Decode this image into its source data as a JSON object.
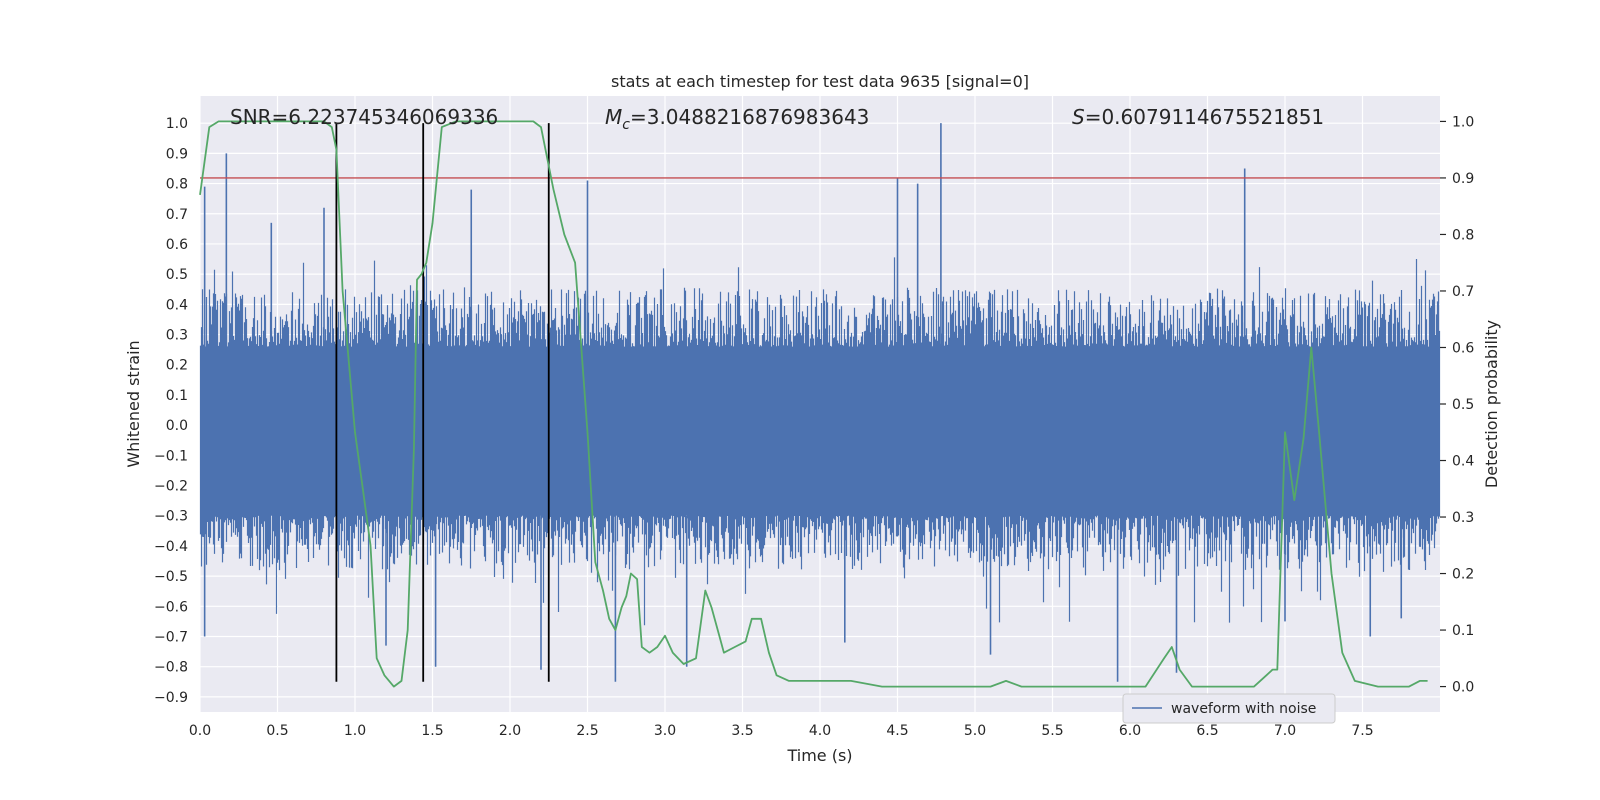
{
  "chart_data": {
    "type": "line",
    "title": "stats at each timestep for test data 9635 [signal=0]",
    "xlabel": "Time (s)",
    "ylabel": "Whitened strain",
    "y2label": "Detection probability",
    "xlim": [
      0.0,
      8.0
    ],
    "ylim": [
      -0.95,
      1.09
    ],
    "y2lim": [
      -0.045,
      1.045
    ],
    "xticks": [
      "0.0",
      "0.5",
      "1.0",
      "1.5",
      "2.0",
      "2.5",
      "3.0",
      "3.5",
      "4.0",
      "4.5",
      "5.0",
      "5.5",
      "6.0",
      "6.5",
      "7.0",
      "7.5"
    ],
    "yticks": [
      "−0.9",
      "−0.8",
      "−0.7",
      "−0.6",
      "−0.5",
      "−0.4",
      "−0.3",
      "−0.2",
      "−0.1",
      "0.0",
      "0.1",
      "0.2",
      "0.3",
      "0.4",
      "0.5",
      "0.6",
      "0.7",
      "0.8",
      "0.9",
      "1.0"
    ],
    "y2ticks": [
      "0.0",
      "0.1",
      "0.2",
      "0.3",
      "0.4",
      "0.5",
      "0.6",
      "0.7",
      "0.8",
      "0.9",
      "1.0"
    ],
    "grid": true,
    "legend": {
      "position": "lower-right",
      "entries": [
        "waveform with noise"
      ]
    },
    "annotations": {
      "snr": "SNR=6.223745346069336",
      "mc_symbol": "M",
      "mc_sub": "c",
      "mc_value": "=3.0488216876983643",
      "s_symbol": "S",
      "s_value": "=0.6079114675521851"
    },
    "threshold": {
      "axis": "y2",
      "value": 0.9,
      "color": "#c44e52"
    },
    "vlines": {
      "x": [
        0.88,
        1.44,
        2.25
      ],
      "ymin": -0.85,
      "ymax": 1.0,
      "color": "#000000"
    },
    "series": [
      {
        "name": "waveform with noise",
        "axis": "y",
        "color": "#4c72b0",
        "kind": "noise-envelope",
        "t_step": 0.004,
        "band": [
          -0.3,
          0.26
        ],
        "envelope_high": [
          0.45,
          0.5
        ],
        "envelope_low": [
          -0.48,
          -0.58
        ],
        "spikes": [
          {
            "x": 0.03,
            "y": 0.79
          },
          {
            "x": 0.17,
            "y": 0.9
          },
          {
            "x": 0.46,
            "y": 0.67
          },
          {
            "x": 0.8,
            "y": 0.72
          },
          {
            "x": 1.75,
            "y": 0.78
          },
          {
            "x": 2.5,
            "y": 0.81
          },
          {
            "x": 4.5,
            "y": 0.82
          },
          {
            "x": 4.78,
            "y": 1.0
          },
          {
            "x": 4.63,
            "y": 0.8
          },
          {
            "x": 6.74,
            "y": 0.85
          },
          {
            "x": 2.68,
            "y": -0.85
          },
          {
            "x": 5.92,
            "y": -0.85
          },
          {
            "x": 0.03,
            "y": -0.7
          },
          {
            "x": 1.52,
            "y": -0.8
          },
          {
            "x": 2.2,
            "y": -0.81
          },
          {
            "x": 3.14,
            "y": -0.8
          },
          {
            "x": 4.16,
            "y": -0.72
          },
          {
            "x": 5.1,
            "y": -0.76
          },
          {
            "x": 6.3,
            "y": -0.82
          },
          {
            "x": 7.0,
            "y": -0.65
          },
          {
            "x": 7.55,
            "y": -0.7
          },
          {
            "x": 7.75,
            "y": -0.64
          },
          {
            "x": 1.2,
            "y": -0.73
          }
        ]
      },
      {
        "name": "",
        "axis": "y2",
        "color": "#55a868",
        "x": [
          0.0,
          0.06,
          0.12,
          0.2,
          0.3,
          0.4,
          0.5,
          0.6,
          0.7,
          0.8,
          0.85,
          0.88,
          0.92,
          1.0,
          1.05,
          1.1,
          1.14,
          1.19,
          1.25,
          1.3,
          1.34,
          1.38,
          1.4,
          1.43,
          1.46,
          1.5,
          1.56,
          1.65,
          1.8,
          1.95,
          2.05,
          2.15,
          2.2,
          2.28,
          2.35,
          2.42,
          2.5,
          2.55,
          2.6,
          2.64,
          2.68,
          2.72,
          2.75,
          2.78,
          2.82,
          2.85,
          2.9,
          2.95,
          3.0,
          3.05,
          3.12,
          3.2,
          3.26,
          3.3,
          3.35,
          3.38,
          3.45,
          3.52,
          3.56,
          3.62,
          3.67,
          3.72,
          3.8,
          3.9,
          3.95,
          4.0,
          4.05,
          4.1,
          4.2,
          4.4,
          4.6,
          4.8,
          5.0,
          5.1,
          5.2,
          5.3,
          5.5,
          5.8,
          6.1,
          6.22,
          6.27,
          6.32,
          6.4,
          6.6,
          6.7,
          6.8,
          6.88,
          6.92,
          6.95,
          7.0,
          7.06,
          7.12,
          7.17,
          7.22,
          7.3,
          7.37,
          7.45,
          7.6,
          7.7,
          7.8,
          7.87,
          7.92
        ],
        "y": [
          0.87,
          0.99,
          1.0,
          1.0,
          1.0,
          1.0,
          1.0,
          1.0,
          1.0,
          1.0,
          0.99,
          0.95,
          0.7,
          0.45,
          0.35,
          0.25,
          0.05,
          0.02,
          0.0,
          0.01,
          0.1,
          0.42,
          0.72,
          0.73,
          0.75,
          0.82,
          0.99,
          1.0,
          1.0,
          1.0,
          1.0,
          1.0,
          0.99,
          0.88,
          0.8,
          0.75,
          0.45,
          0.22,
          0.17,
          0.12,
          0.1,
          0.14,
          0.16,
          0.2,
          0.19,
          0.07,
          0.06,
          0.07,
          0.09,
          0.06,
          0.04,
          0.05,
          0.17,
          0.14,
          0.09,
          0.06,
          0.07,
          0.08,
          0.12,
          0.12,
          0.06,
          0.02,
          0.01,
          0.01,
          0.01,
          0.01,
          0.01,
          0.01,
          0.01,
          0.0,
          0.0,
          0.0,
          0.0,
          0.0,
          0.01,
          0.0,
          0.0,
          0.0,
          0.0,
          0.05,
          0.07,
          0.03,
          0.0,
          0.0,
          0.0,
          0.0,
          0.02,
          0.03,
          0.03,
          0.45,
          0.33,
          0.44,
          0.6,
          0.45,
          0.2,
          0.06,
          0.01,
          0.0,
          0.0,
          0.0,
          0.01,
          0.01
        ]
      }
    ]
  }
}
